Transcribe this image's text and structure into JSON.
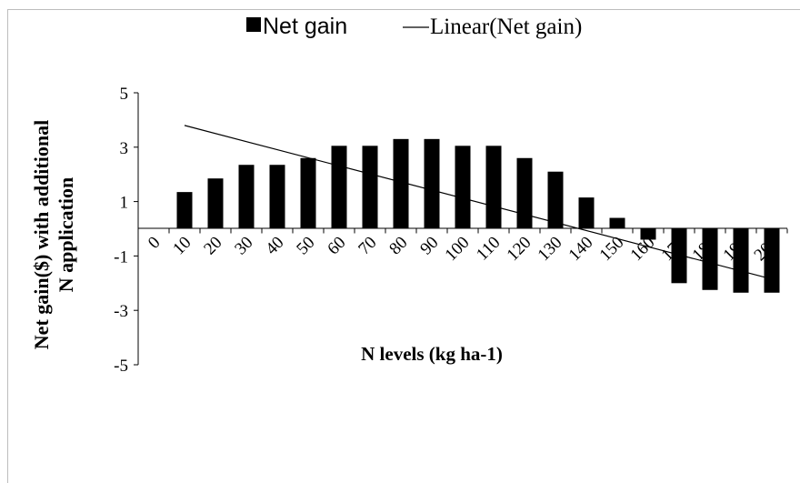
{
  "chart_data": {
    "type": "bar",
    "categories": [
      "0",
      "10",
      "20",
      "30",
      "40",
      "50",
      "60",
      "70",
      "80",
      "90",
      "100",
      "110",
      "120",
      "130",
      "140",
      "150",
      "160",
      "170",
      "180",
      "190",
      "200"
    ],
    "series": [
      {
        "name": "Net gain",
        "values": [
          0,
          1.35,
          1.85,
          2.35,
          2.35,
          2.6,
          3.05,
          3.05,
          3.3,
          3.3,
          3.05,
          3.05,
          2.6,
          2.1,
          1.15,
          0.4,
          -0.4,
          -2.0,
          -2.25,
          -2.35,
          -2.35
        ]
      }
    ],
    "trendline": {
      "name": "Linear(Net gain)",
      "x_start": "10",
      "y_start": 3.8,
      "x_end": "200",
      "y_end": -1.85
    },
    "xlabel": "N levels (kg ha-1)",
    "ylabel_lines": [
      "Net gain($) with additional",
      "N application"
    ],
    "ylim": [
      -5,
      5
    ],
    "yticks": [
      "5",
      "3",
      "1",
      "-1",
      "-3",
      "-5"
    ],
    "ytick_values": [
      5,
      3,
      1,
      -1,
      -3,
      -5
    ],
    "legend": [
      "Net gain",
      "Linear(Net gain)"
    ],
    "legend_position": "top",
    "grid": false,
    "bar_color": "#000000",
    "line_color": "#000000"
  }
}
